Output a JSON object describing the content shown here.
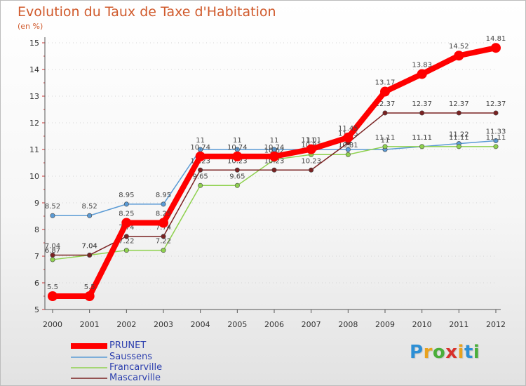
{
  "chart_data": {
    "type": "line",
    "title": "Evolution du Taux de Taxe d'Habitation",
    "ylabel": "(en %)",
    "xlabel": "",
    "ylim": [
      5,
      15
    ],
    "yticks": [
      "5",
      "6",
      "7",
      "8",
      "9",
      "10",
      "11",
      "12",
      "13",
      "14",
      "15"
    ],
    "categories": [
      "2000",
      "2001",
      "2002",
      "2003",
      "2004",
      "2005",
      "2006",
      "2007",
      "2008",
      "2009",
      "2010",
      "2011",
      "2012"
    ],
    "series": [
      {
        "name": "Saussens",
        "color": "#5b9bd5",
        "values": [
          8.52,
          8.52,
          8.95,
          8.95,
          11,
          11,
          11,
          11,
          11,
          11,
          11.11,
          11.22,
          11.33
        ],
        "labels": [
          "8.52",
          "8.52",
          "8.95",
          "8.95",
          "11",
          "11",
          "11",
          "11",
          "11",
          "11",
          "11.11",
          "11.22",
          "11.33"
        ]
      },
      {
        "name": "Francarville",
        "color": "#8fd14f",
        "values": [
          6.87,
          7.04,
          7.22,
          7.22,
          9.65,
          9.65,
          10.62,
          10.81,
          10.81,
          11.11,
          11.11,
          11.11,
          11.11
        ],
        "labels": [
          "6.87",
          "7.04",
          "7.22",
          "7.22",
          "9.65",
          "9.65",
          "10.62",
          "10.81",
          "10.81",
          "11.11",
          "11.11",
          "11.11",
          "11.11"
        ]
      },
      {
        "name": "Mascarville",
        "color": "#7a2222",
        "values": [
          7.04,
          7.04,
          7.74,
          7.74,
          10.23,
          10.23,
          10.23,
          10.23,
          11.25,
          12.37,
          12.37,
          12.37,
          12.37
        ],
        "labels": [
          "7.04",
          "7.04",
          "7.74",
          "7.74",
          "10.23",
          "10.23",
          "10.23",
          "10.23",
          "11.25",
          "12.37",
          "12.37",
          "12.37",
          "12.37"
        ]
      },
      {
        "name": "PRUNET",
        "color": "#ff0000",
        "values": [
          5.5,
          5.5,
          8.25,
          8.25,
          10.74,
          10.74,
          10.74,
          11.01,
          11.45,
          13.17,
          13.83,
          14.52,
          14.81
        ],
        "labels": [
          "5.5",
          "5.5",
          "8.25",
          "8.25",
          "10.74",
          "10.74",
          "10.74",
          "11.01",
          "11.45",
          "13.17",
          "13.83",
          "14.52",
          "14.81"
        ]
      }
    ],
    "legend": [
      "PRUNET",
      "Saussens",
      "Francarville",
      "Mascarville"
    ]
  },
  "brand": {
    "letters": [
      "P",
      "r",
      "o",
      "x",
      "i",
      "t",
      "i"
    ],
    "colors": [
      "#2d8fd5",
      "#e8a21e",
      "#4aae3a",
      "#d8302b",
      "#e8a21e",
      "#2d8fd5",
      "#4aae3a"
    ]
  }
}
